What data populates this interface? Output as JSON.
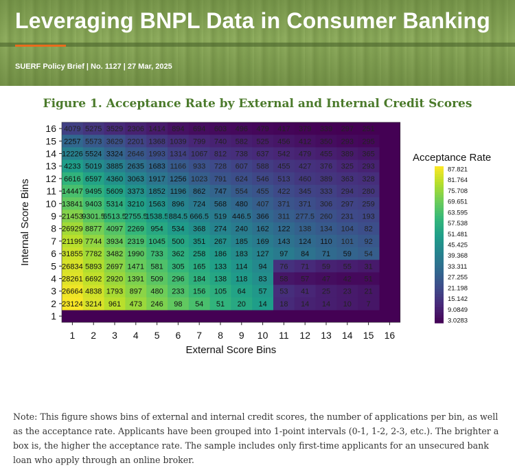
{
  "header": {
    "title": "Leveraging BNPL Data in Consumer Banking",
    "subtitle": "SUERF Policy Brief | No. 1127 | 27 Mar, 2025"
  },
  "colors": {
    "title_green": "#4b7a2b",
    "accent_orange": "#e96b1c",
    "banner_green": "#8aa85a"
  },
  "note": "Note: This figure shows bins of external and internal credit scores, the number of applications per bin, as well as the acceptance rate. Applicants have been grouped into 1-point intervals (0-1, 1-2, 2-3, etc.). The brighter a box is, the higher the acceptance rate. The sample includes only first-time applicants for an unsecured bank loan who apply through an online broker.",
  "chart_data": {
    "type": "heatmap",
    "title": "Figure 1. Acceptance Rate by External and Internal Credit Scores",
    "xlabel": "External Score Bins",
    "ylabel": "Internal Score Bins",
    "x_ticks": [
      "1",
      "2",
      "3",
      "4",
      "5",
      "6",
      "7",
      "8",
      "9",
      "10",
      "11",
      "12",
      "13",
      "14",
      "15",
      "16"
    ],
    "y_ticks": [
      "1",
      "2",
      "3",
      "4",
      "5",
      "6",
      "7",
      "8",
      "9",
      "10",
      "11",
      "12",
      "13",
      "14",
      "15",
      "16"
    ],
    "colorbar_label": "Acceptance Rate",
    "colorbar_ticks": [
      "87.821",
      "81.764",
      "75.708",
      "69.651",
      "63.595",
      "57.538",
      "51.481",
      "45.425",
      "39.368",
      "33.311",
      "27.255",
      "21.198",
      "15.142",
      "9.0849",
      "3.0283"
    ],
    "colorbar_range": [
      3.0283,
      87.821
    ],
    "rows_top_to_bottom": [
      {
        "y": "16",
        "counts": [
          "4079",
          "5275",
          "3529",
          "2306",
          "1414",
          "894",
          "694",
          "603",
          "496",
          "479",
          "417",
          "379",
          "339",
          "297",
          "251"
        ],
        "rates": [
          19,
          16,
          13,
          11,
          9,
          7,
          6,
          5.5,
          5,
          4.5,
          4,
          3.5,
          3.2,
          3.0,
          3.0
        ]
      },
      {
        "y": "15",
        "counts": [
          "2257",
          "5573",
          "3629",
          "2201",
          "1368",
          "1039",
          "799",
          "740",
          "582",
          "525",
          "456",
          "412",
          "350",
          "293",
          "295"
        ],
        "rates": [
          31,
          27,
          24,
          20,
          17,
          14,
          12,
          11,
          10,
          9,
          8,
          7,
          6,
          5,
          4.5
        ]
      },
      {
        "y": "14",
        "counts": [
          "12226",
          "5524",
          "3324",
          "2646",
          "1993",
          "1314",
          "1067",
          "812",
          "738",
          "637",
          "542",
          "479",
          "455",
          "389",
          "365"
        ],
        "rates": [
          40,
          35,
          30,
          26,
          23,
          19,
          17,
          15,
          14,
          13,
          12,
          11,
          10,
          9,
          8
        ]
      },
      {
        "y": "13",
        "counts": [
          "4233",
          "5019",
          "3885",
          "2635",
          "1683",
          "1166",
          "933",
          "728",
          "607",
          "588",
          "455",
          "427",
          "376",
          "325",
          "293"
        ],
        "rates": [
          50,
          44,
          40,
          35,
          31,
          27,
          24,
          22,
          20,
          18,
          16,
          15,
          14,
          12,
          11
        ]
      },
      {
        "y": "12",
        "counts": [
          "6616",
          "6597",
          "4360",
          "3063",
          "1917",
          "1256",
          "1023",
          "791",
          "624",
          "546",
          "513",
          "460",
          "389",
          "363",
          "328"
        ],
        "rates": [
          58,
          52,
          46,
          41,
          36,
          32,
          28,
          25,
          23,
          21,
          19,
          17,
          16,
          15,
          14
        ]
      },
      {
        "y": "11",
        "counts": [
          "14447",
          "9495",
          "5609",
          "3373",
          "1852",
          "1196",
          "862",
          "747",
          "554",
          "455",
          "422",
          "345",
          "333",
          "294",
          "280"
        ],
        "rates": [
          63,
          57,
          52,
          46,
          41,
          37,
          33,
          30,
          27,
          25,
          22,
          20,
          19,
          17,
          16
        ]
      },
      {
        "y": "10",
        "counts": [
          "13841",
          "9403",
          "5314",
          "3210",
          "1563",
          "896",
          "724",
          "568",
          "480",
          "407",
          "371",
          "371",
          "306",
          "297",
          "259"
        ],
        "rates": [
          67,
          62,
          56,
          51,
          46,
          41,
          37,
          34,
          31,
          28,
          25,
          23,
          21,
          20,
          19
        ]
      },
      {
        "y": "9",
        "counts": [
          "21453",
          "9301.5",
          "6513.5",
          "2755.5",
          "1538.5",
          "884.5",
          "666.5",
          "519",
          "446.5",
          "366",
          "311",
          "277.5",
          "260",
          "231",
          "193"
        ],
        "rates": [
          72,
          66,
          60,
          55,
          50,
          45,
          41,
          38,
          35,
          31,
          28,
          26,
          24,
          22,
          21
        ]
      },
      {
        "y": "8",
        "counts": [
          "26929",
          "8877",
          "4097",
          "2269",
          "954",
          "534",
          "368",
          "274",
          "240",
          "162",
          "122",
          "138",
          "134",
          "104",
          "82"
        ],
        "rates": [
          76,
          70,
          65,
          59,
          54,
          49,
          45,
          41,
          38,
          35,
          32,
          29,
          27,
          25,
          23
        ]
      },
      {
        "y": "7",
        "counts": [
          "21199",
          "7744",
          "3934",
          "2319",
          "1045",
          "500",
          "351",
          "267",
          "185",
          "169",
          "143",
          "124",
          "110",
          "101",
          "92"
        ],
        "rates": [
          79,
          74,
          68,
          63,
          58,
          53,
          49,
          45,
          41,
          38,
          35,
          32,
          30,
          28,
          26
        ]
      },
      {
        "y": "6",
        "counts": [
          "31855",
          "7782",
          "3482",
          "1990",
          "733",
          "362",
          "258",
          "186",
          "183",
          "127",
          "97",
          "84",
          "71",
          "59",
          "54"
        ],
        "rates": [
          81,
          76,
          71,
          66,
          61,
          56,
          52,
          48,
          44,
          41,
          38,
          35,
          32,
          30,
          28
        ]
      },
      {
        "y": "5",
        "counts": [
          "26834",
          "5893",
          "2697",
          "1471",
          "581",
          "305",
          "165",
          "133",
          "114",
          "94",
          "76",
          "71",
          "59",
          "55",
          "31"
        ],
        "rates": [
          83,
          78,
          73,
          68,
          64,
          59,
          55,
          51,
          47,
          43,
          15,
          13,
          11,
          10,
          9
        ]
      },
      {
        "y": "4",
        "counts": [
          "28261",
          "6692",
          "2920",
          "1391",
          "509",
          "296",
          "184",
          "138",
          "118",
          "83",
          "58",
          "57",
          "47",
          "42",
          "51"
        ],
        "rates": [
          84,
          80,
          75,
          71,
          66,
          62,
          57,
          53,
          49,
          45,
          8,
          7,
          6,
          5,
          5
        ]
      },
      {
        "y": "3",
        "counts": [
          "26664",
          "4838",
          "1793",
          "897",
          "480",
          "233",
          "156",
          "105",
          "64",
          "57",
          "53",
          "41",
          "25",
          "23",
          "21"
        ],
        "rates": [
          86,
          82,
          77,
          73,
          69,
          64,
          60,
          56,
          52,
          48,
          14,
          12,
          10,
          9,
          8
        ]
      },
      {
        "y": "2",
        "counts": [
          "23124",
          "3214",
          "961",
          "473",
          "246",
          "98",
          "54",
          "51",
          "20",
          "14",
          "18",
          "14",
          "14",
          "10",
          "7"
        ],
        "rates": [
          87,
          83,
          79,
          75,
          71,
          67,
          63,
          58,
          54,
          50,
          13,
          11,
          10,
          9,
          8
        ]
      }
    ]
  }
}
